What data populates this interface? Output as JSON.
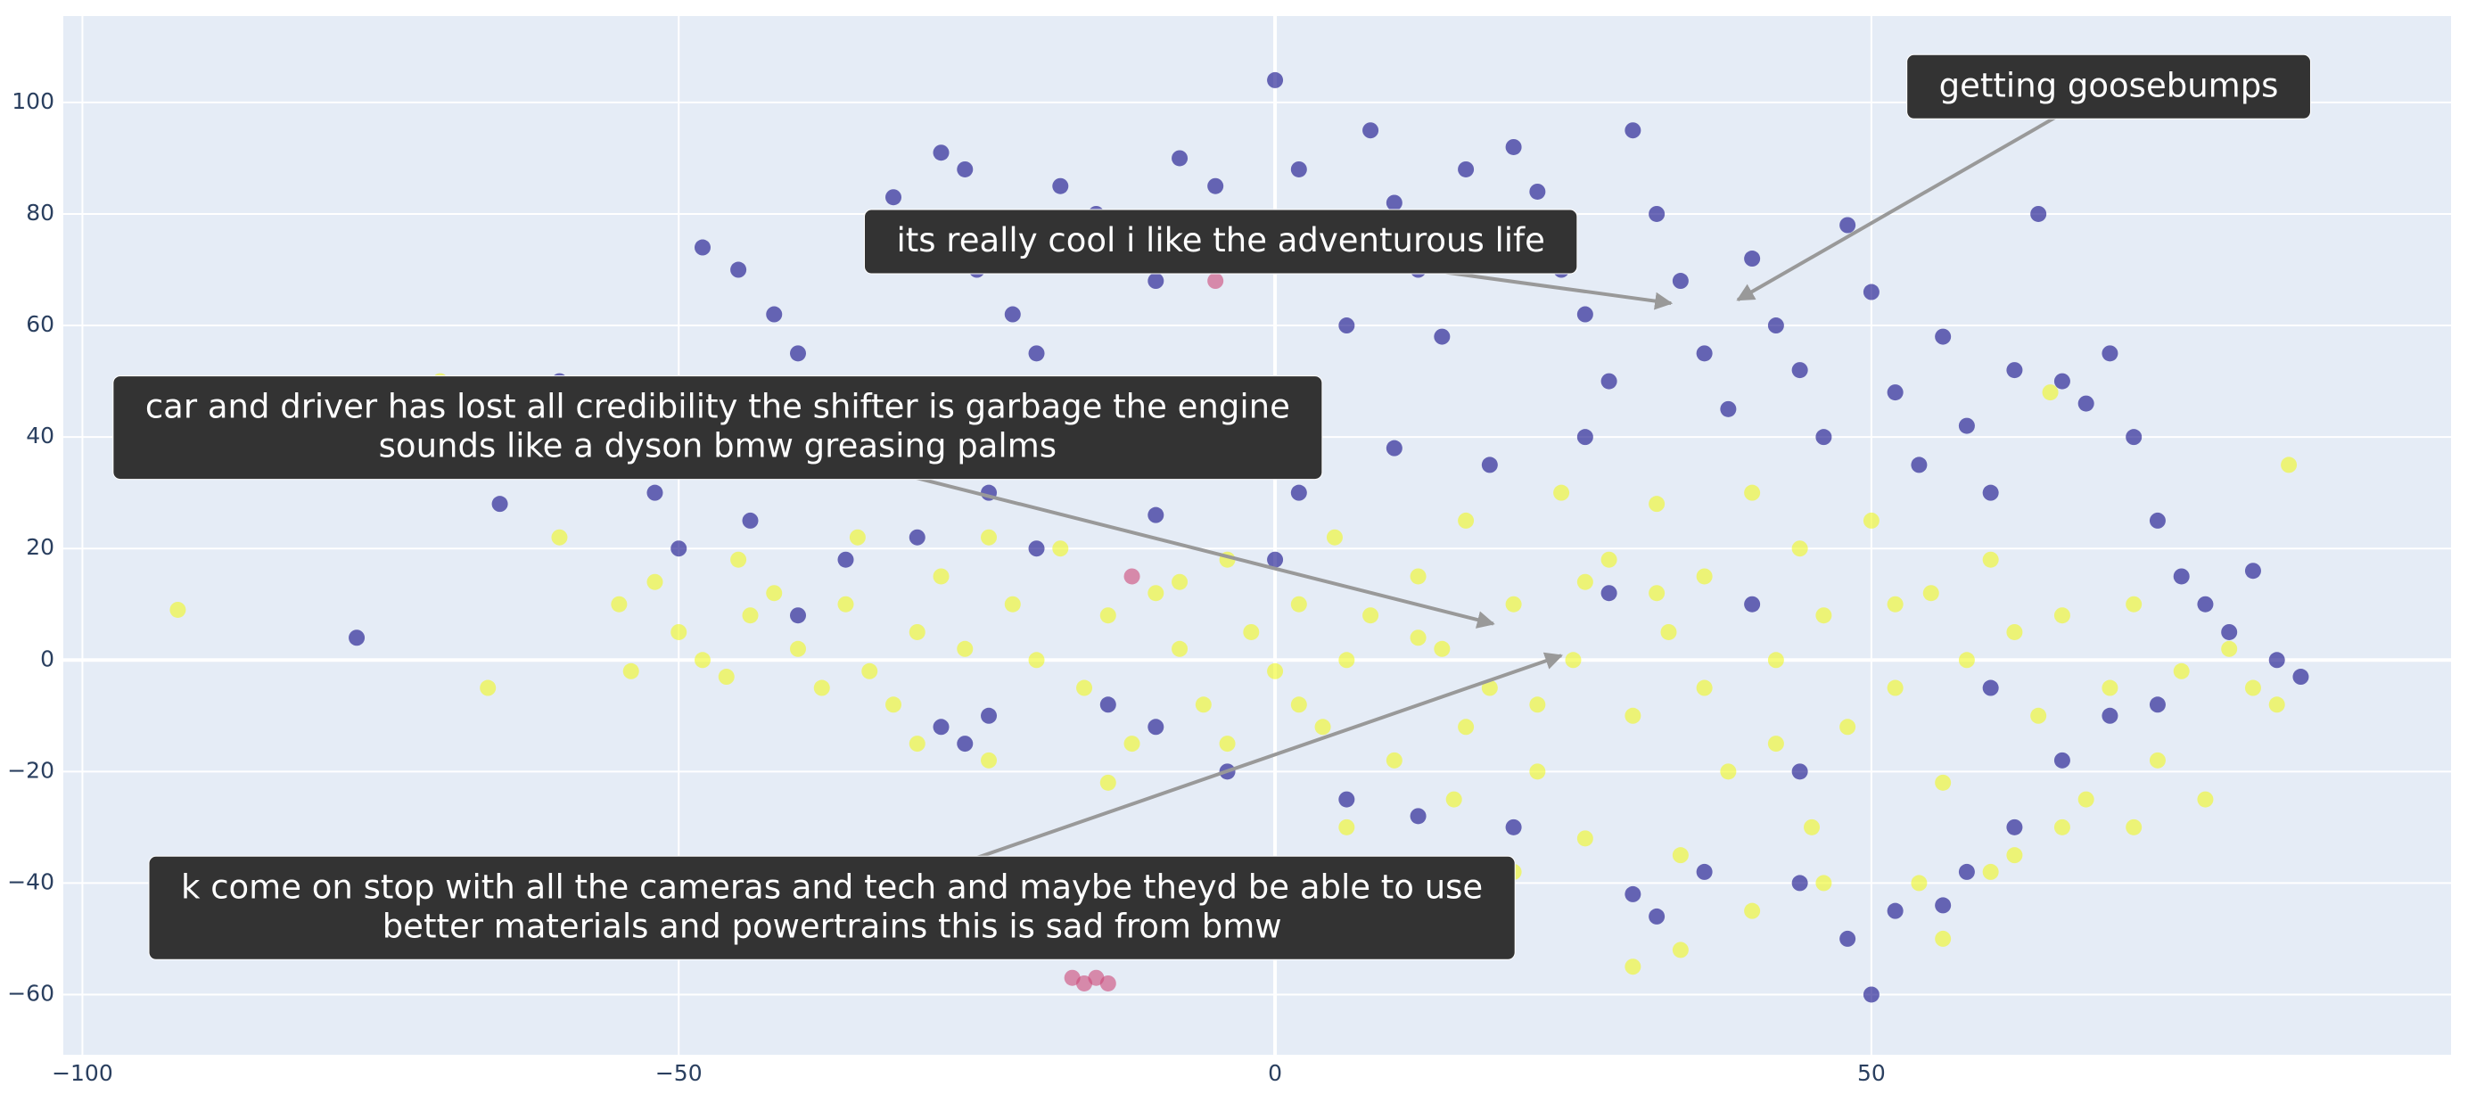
{
  "chart_data": {
    "type": "scatter",
    "xlim": [
      -101.6,
      98.6
    ],
    "ylim": [
      -70.8,
      115.5
    ],
    "xticks": [
      {
        "value": -100,
        "label": "−100"
      },
      {
        "value": -50,
        "label": "−50"
      },
      0,
      50
    ],
    "yticks": [
      {
        "value": -60,
        "label": "−60"
      },
      {
        "value": -40,
        "label": "−40"
      },
      {
        "value": -20,
        "label": "−20"
      },
      0,
      20,
      40,
      60,
      80,
      100
    ],
    "grid": true,
    "series": [
      {
        "color": "#0d0887",
        "x": [
          -60,
          -55,
          -52,
          -48,
          -45,
          -42,
          -40,
          -38,
          -35,
          -32,
          -30,
          -28,
          -26,
          -25,
          -22,
          -20,
          -18,
          -15,
          -12,
          -10,
          -8,
          -5,
          -3,
          0,
          2,
          4,
          6,
          8,
          10,
          12,
          14,
          16,
          18,
          20,
          22,
          24,
          26,
          28,
          30,
          32,
          34,
          36,
          38,
          40,
          42,
          44,
          46,
          48,
          50,
          52,
          54,
          56,
          58,
          60,
          62,
          64,
          66,
          68,
          70,
          72,
          74,
          76,
          78,
          80,
          84,
          86,
          -65,
          -58,
          -50,
          -44,
          -36,
          -30,
          -24,
          -16,
          -6,
          2,
          10,
          18,
          26,
          -28,
          -26,
          -24,
          -14,
          -10,
          -4,
          6,
          12,
          20,
          30,
          32,
          36,
          44,
          48,
          52,
          56,
          58,
          62,
          66,
          70,
          -77,
          50,
          44,
          -40,
          -20,
          -10,
          0,
          28,
          40,
          60,
          74,
          82
        ],
        "y": [
          50,
          45,
          30,
          74,
          70,
          62,
          55,
          48,
          40,
          83,
          78,
          91,
          88,
          70,
          62,
          55,
          85,
          80,
          75,
          68,
          90,
          85,
          78,
          104,
          88,
          72,
          60,
          95,
          82,
          70,
          58,
          88,
          76,
          92,
          84,
          70,
          62,
          50,
          95,
          80,
          68,
          55,
          45,
          72,
          60,
          52,
          40,
          78,
          66,
          48,
          35,
          58,
          42,
          30,
          52,
          80,
          50,
          46,
          55,
          40,
          25,
          15,
          10,
          5,
          0,
          -3,
          28,
          38,
          20,
          25,
          18,
          22,
          30,
          40,
          45,
          30,
          38,
          35,
          40,
          -12,
          -15,
          -10,
          -8,
          -12,
          -20,
          -25,
          -28,
          -30,
          -42,
          -46,
          -38,
          -40,
          -50,
          -45,
          -44,
          -38,
          -30,
          -18,
          -10,
          4,
          -60,
          -20,
          8,
          20,
          26,
          18,
          12,
          10,
          -5,
          -8,
          16
        ]
      },
      {
        "color": "#f0f921",
        "x": [
          -92,
          -66,
          -60,
          -55,
          -52,
          -50,
          -48,
          -46,
          -45,
          -42,
          -40,
          -38,
          -36,
          -35,
          -32,
          -30,
          -28,
          -26,
          -24,
          -22,
          -20,
          -18,
          -16,
          -14,
          -12,
          -10,
          -8,
          -6,
          -4,
          -2,
          0,
          2,
          4,
          5,
          6,
          8,
          10,
          12,
          14,
          15,
          16,
          18,
          20,
          22,
          24,
          25,
          26,
          28,
          30,
          32,
          33,
          34,
          36,
          38,
          40,
          42,
          44,
          45,
          46,
          48,
          50,
          52,
          54,
          55,
          56,
          58,
          60,
          62,
          64,
          66,
          68,
          70,
          72,
          74,
          76,
          78,
          80,
          82,
          84,
          85,
          -54,
          -44,
          -34,
          -24,
          -14,
          -4,
          6,
          16,
          26,
          36,
          46,
          56,
          30,
          34,
          40,
          60,
          66,
          72,
          -8,
          2,
          12,
          22,
          32,
          42,
          52,
          62,
          -70,
          65,
          -30,
          20
        ],
        "y": [
          9,
          -5,
          22,
          10,
          14,
          5,
          0,
          -3,
          18,
          12,
          2,
          -5,
          10,
          22,
          -8,
          5,
          15,
          2,
          -18,
          10,
          0,
          20,
          -5,
          8,
          -15,
          12,
          2,
          -8,
          18,
          5,
          -2,
          10,
          -12,
          22,
          0,
          8,
          -18,
          15,
          2,
          -25,
          25,
          -5,
          10,
          -20,
          30,
          0,
          -32,
          18,
          -10,
          28,
          5,
          -35,
          15,
          -20,
          30,
          0,
          20,
          -30,
          8,
          -12,
          25,
          -5,
          -40,
          12,
          -22,
          0,
          18,
          -35,
          -10,
          8,
          -25,
          -5,
          10,
          -18,
          -2,
          -25,
          2,
          -5,
          -8,
          35,
          -2,
          8,
          -2,
          22,
          -22,
          -15,
          -30,
          -12,
          14,
          -5,
          -40,
          -50,
          -55,
          -52,
          -45,
          -38,
          -30,
          -30,
          14,
          -8,
          4,
          -8,
          12,
          -15,
          10,
          5,
          50,
          48,
          -15,
          -38
        ]
      },
      {
        "color": "#cc4778",
        "x": [
          -17,
          -16,
          -15,
          -14,
          -5,
          -12
        ],
        "y": [
          -57,
          -58,
          -57,
          -58,
          68,
          15
        ]
      }
    ],
    "annotations": [
      {
        "text": [
          "getting goosebumps"
        ],
        "x": 38.8,
        "y": 64.6
      },
      {
        "text": [
          "its really cool i like the adventurous life"
        ],
        "x": 33.2,
        "y": 64
      },
      {
        "text": [
          "car and driver has lost all credibility the shifter is garbage the engine",
          "sounds like a dyson bmw greasing palms"
        ],
        "x": 18.3,
        "y": 6.5
      },
      {
        "text": [
          "k come on stop with all the cameras and tech and maybe theyd be able to use",
          "better materials and powertrains this is sad from bmw"
        ],
        "x": 24,
        "y": 0.8
      }
    ]
  }
}
